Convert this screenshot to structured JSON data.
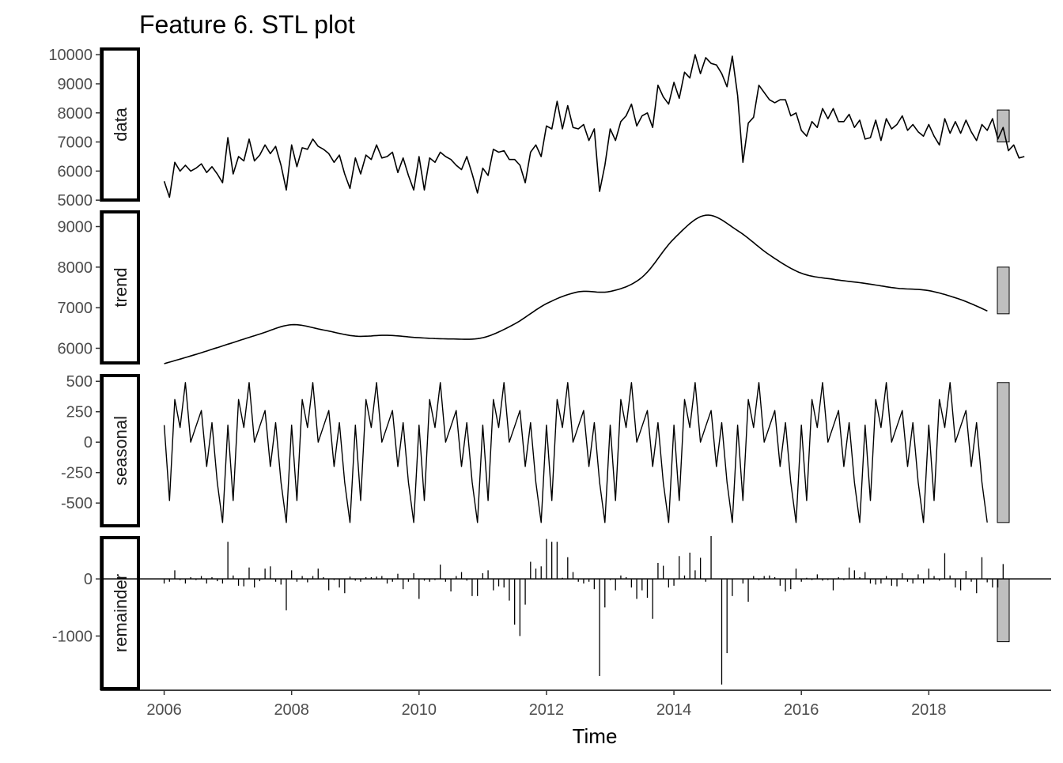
{
  "chart_data": {
    "type": "line",
    "title": "Feature 6. STL plot",
    "xlabel": "Time",
    "x_ticks": [
      2006,
      2008,
      2010,
      2012,
      2014,
      2016,
      2018
    ],
    "x_range": [
      2005.0,
      2019.92
    ],
    "start": 2006.0,
    "frequency": 12,
    "panels": [
      {
        "name": "data",
        "strip": "data",
        "kind": "line",
        "ylim": [
          4950,
          10250
        ],
        "yticks": [
          5000,
          6000,
          7000,
          8000,
          9000,
          10000
        ],
        "ytick_labels": [
          "5000",
          "6000",
          "7000",
          "8000",
          "9000",
          "10000"
        ],
        "bar_range": [
          7000,
          8100
        ],
        "values": [
          5650,
          5100,
          6300,
          6000,
          6200,
          6000,
          6100,
          6250,
          5950,
          6150,
          5900,
          5600,
          7150,
          5900,
          6500,
          6350,
          7100,
          6350,
          6550,
          6900,
          6600,
          6850,
          6200,
          5350,
          6900,
          6150,
          6800,
          6750,
          7100,
          6850,
          6750,
          6600,
          6300,
          6550,
          5900,
          5400,
          6450,
          5900,
          6550,
          6400,
          6900,
          6450,
          6500,
          6650,
          5950,
          6450,
          5850,
          5350,
          6500,
          5350,
          6450,
          6300,
          6650,
          6500,
          6400,
          6200,
          6050,
          6500,
          5900,
          5250,
          6100,
          5850,
          6750,
          6650,
          6700,
          6400,
          6400,
          6200,
          5600,
          6650,
          6900,
          6500,
          7550,
          7450,
          8400,
          7450,
          8250,
          7500,
          7450,
          7600,
          7050,
          7450,
          5300,
          6200,
          7450,
          7050,
          7700,
          7900,
          8300,
          7550,
          7900,
          8000,
          7500,
          8950,
          8550,
          8300,
          9050,
          8500,
          9400,
          9200,
          10000,
          9350,
          9900,
          9700,
          9650,
          9350,
          8900,
          9950,
          8600,
          6300,
          7650,
          7850,
          8950,
          8700,
          8450,
          8350,
          8450,
          8450,
          7900,
          8000,
          7400,
          7200,
          7700,
          7500,
          8150,
          7800,
          8150,
          7700,
          7700,
          7950,
          7500,
          7750,
          7100,
          7150,
          7750,
          7050,
          7800,
          7450,
          7600,
          7900,
          7400,
          7600,
          7350,
          7200,
          7600,
          7200,
          6900,
          7800,
          7300,
          7700,
          7300,
          7750,
          7350,
          7050,
          7600,
          7400,
          7800,
          7100,
          7500,
          6700,
          6900,
          6450,
          6500
        ]
      },
      {
        "name": "trend",
        "strip": "trend",
        "kind": "line",
        "ylim": [
          5600,
          9400
        ],
        "yticks": [
          6000,
          7000,
          8000,
          9000
        ],
        "ytick_labels": [
          "6000",
          "7000",
          "8000",
          "9000"
        ],
        "bar_range": [
          6850,
          8000
        ],
        "knots": [
          [
            2006.0,
            5620
          ],
          [
            2006.5,
            5850
          ],
          [
            2007.0,
            6100
          ],
          [
            2007.5,
            6350
          ],
          [
            2008.0,
            6580
          ],
          [
            2008.5,
            6450
          ],
          [
            2009.0,
            6300
          ],
          [
            2009.5,
            6320
          ],
          [
            2010.0,
            6260
          ],
          [
            2010.5,
            6230
          ],
          [
            2011.0,
            6260
          ],
          [
            2011.5,
            6600
          ],
          [
            2012.0,
            7100
          ],
          [
            2012.5,
            7390
          ],
          [
            2013.0,
            7400
          ],
          [
            2013.5,
            7750
          ],
          [
            2014.0,
            8700
          ],
          [
            2014.5,
            9280
          ],
          [
            2015.0,
            8900
          ],
          [
            2015.5,
            8300
          ],
          [
            2016.0,
            7850
          ],
          [
            2016.5,
            7700
          ],
          [
            2017.0,
            7600
          ],
          [
            2017.5,
            7480
          ],
          [
            2018.0,
            7420
          ],
          [
            2018.5,
            7200
          ],
          [
            2018.92,
            6920
          ]
        ]
      },
      {
        "name": "seasonal",
        "strip": "seasonal",
        "kind": "line",
        "ylim": [
          -700,
          560
        ],
        "yticks": [
          -500,
          -250,
          0,
          250,
          500
        ],
        "ytick_labels": [
          "-500",
          "-250",
          "0",
          "250",
          "500"
        ],
        "bar_range": [
          -660,
          490
        ],
        "pattern": [
          140,
          -480,
          350,
          120,
          490,
          0,
          130,
          260,
          -200,
          160,
          -330,
          -660
        ]
      },
      {
        "name": "remainder",
        "strip": "remainder",
        "kind": "bars",
        "ylim": [
          -1950,
          750
        ],
        "yticks": [
          -1000,
          0
        ],
        "ytick_labels": [
          "-1000",
          "0"
        ],
        "bar_range": [
          -1100,
          0
        ],
        "values": [
          -80,
          -50,
          150,
          -20,
          -80,
          30,
          -20,
          50,
          -80,
          30,
          -40,
          -80,
          650,
          60,
          -120,
          -130,
          200,
          -150,
          -40,
          180,
          220,
          -50,
          -100,
          -550,
          150,
          -50,
          50,
          -60,
          50,
          180,
          30,
          -200,
          -20,
          -150,
          -250,
          40,
          -30,
          -50,
          30,
          30,
          40,
          50,
          -80,
          -50,
          90,
          -180,
          -50,
          100,
          -350,
          -30,
          -50,
          -20,
          250,
          -50,
          -220,
          50,
          120,
          -30,
          -300,
          -300,
          100,
          150,
          -200,
          -130,
          -150,
          -380,
          -800,
          -1000,
          -450,
          300,
          180,
          220,
          700,
          650,
          650,
          20,
          380,
          120,
          -50,
          -80,
          -50,
          -180,
          -1700,
          -500,
          -20,
          -200,
          60,
          30,
          -150,
          -350,
          -200,
          -330,
          -700,
          280,
          230,
          -150,
          -120,
          400,
          60,
          460,
          150,
          370,
          -50,
          750,
          0,
          -1850,
          -1300,
          -300,
          0,
          -80,
          -400,
          50,
          -20,
          50,
          60,
          30,
          -120,
          -220,
          -180,
          180,
          -50,
          20,
          -20,
          80,
          -30,
          -20,
          -200,
          30,
          -20,
          200,
          150,
          30,
          120,
          -80,
          -100,
          -80,
          50,
          -120,
          -130,
          100,
          -50,
          -80,
          80,
          -80,
          180,
          50,
          -30,
          450,
          60,
          -150,
          -200,
          140,
          -50,
          -250,
          380,
          -60,
          -150,
          -150,
          260
        ]
      }
    ]
  }
}
